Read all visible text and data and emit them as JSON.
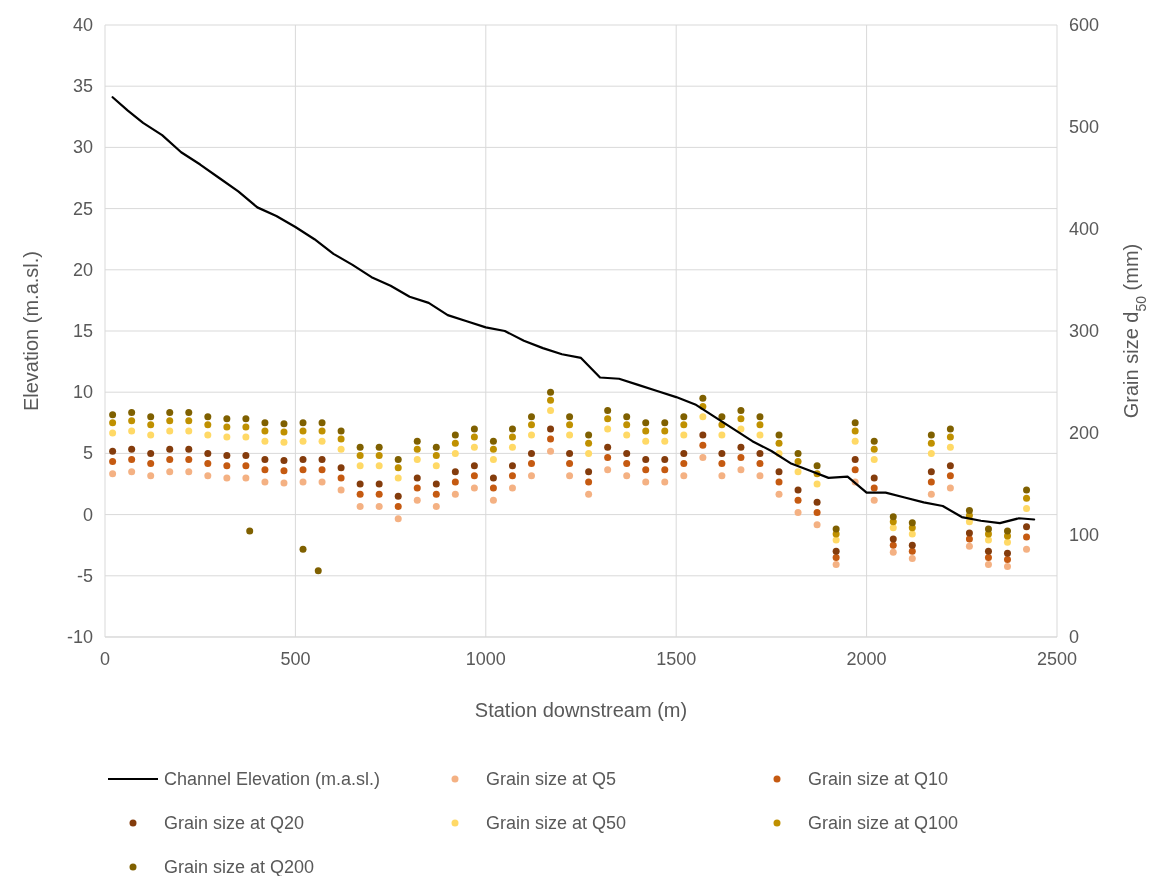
{
  "chart_data": {
    "type": "scatter",
    "xlabel": "Station downstream (m)",
    "ylabel": "Elevation (m.a.sl.)",
    "y2label": "Grain size d$_{50}$ (mm)",
    "xlim": [
      0,
      2500
    ],
    "xticks": [
      0,
      500,
      1000,
      1500,
      2000,
      2500
    ],
    "ylim": [
      -10,
      40
    ],
    "yticks": [
      -10,
      -5,
      0,
      5,
      10,
      15,
      20,
      25,
      30,
      35,
      40
    ],
    "y2lim": [
      0,
      600
    ],
    "y2ticks": [
      0,
      100,
      200,
      300,
      400,
      500,
      600
    ],
    "grid": true,
    "legend": "bottom",
    "marker": "circle",
    "x": [
      20,
      70,
      120,
      170,
      220,
      270,
      320,
      370,
      420,
      470,
      520,
      570,
      620,
      670,
      720,
      770,
      820,
      870,
      920,
      970,
      1020,
      1070,
      1120,
      1170,
      1220,
      1270,
      1320,
      1370,
      1420,
      1470,
      1520,
      1570,
      1620,
      1670,
      1720,
      1770,
      1820,
      1870,
      1920,
      1970,
      2020,
      2070,
      2120,
      2170,
      2220,
      2270,
      2320,
      2370,
      2420
    ],
    "series": [
      {
        "name": "Channel Elevation (m.a.sl.)",
        "type": "line",
        "marker": "none",
        "color": "#000000",
        "x": [
          20,
          60,
          100,
          150,
          200,
          250,
          300,
          350,
          400,
          450,
          500,
          550,
          600,
          650,
          700,
          750,
          800,
          850,
          900,
          950,
          1000,
          1050,
          1100,
          1150,
          1200,
          1250,
          1300,
          1350,
          1400,
          1450,
          1500,
          1550,
          1600,
          1650,
          1700,
          1750,
          1800,
          1850,
          1900,
          1950,
          2000,
          2050,
          2100,
          2150,
          2200,
          2250,
          2300,
          2350,
          2400,
          2440
        ],
        "values": [
          34.1,
          33,
          32,
          31,
          29.6,
          28.6,
          27.5,
          26.4,
          25.1,
          24.4,
          23.5,
          22.5,
          21.3,
          20.4,
          19.4,
          18.7,
          17.8,
          17.3,
          16.3,
          15.8,
          15.3,
          15,
          14.2,
          13.6,
          13.1,
          12.8,
          11.2,
          11.1,
          10.6,
          10.1,
          9.6,
          9,
          8,
          7,
          6,
          5.2,
          4.2,
          3.6,
          3,
          3.1,
          1.8,
          1.8,
          1.4,
          1,
          0.7,
          -0.2,
          -0.5,
          -0.7,
          -0.3,
          -0.4
        ]
      },
      {
        "name": "Grain size at Q5",
        "axis": "y2",
        "color": "#f4b183",
        "values": [
          160,
          162,
          158,
          162,
          162,
          158,
          156,
          156,
          152,
          151,
          152,
          152,
          144,
          128,
          128,
          116,
          134,
          128,
          140,
          146,
          134,
          146,
          158,
          182,
          158,
          140,
          164,
          158,
          152,
          152,
          158,
          176,
          158,
          164,
          158,
          140,
          122,
          110,
          71,
          152,
          134,
          83,
          77,
          140,
          146,
          89,
          71,
          69,
          86
        ]
      },
      {
        "name": "Grain size at Q10",
        "axis": "y2",
        "color": "#c55a11",
        "values": [
          172,
          174,
          170,
          174,
          174,
          170,
          168,
          168,
          164,
          163,
          164,
          164,
          156,
          140,
          140,
          128,
          146,
          140,
          152,
          158,
          146,
          158,
          170,
          194,
          170,
          152,
          176,
          170,
          164,
          164,
          170,
          188,
          170,
          176,
          170,
          152,
          134,
          122,
          78,
          164,
          146,
          90,
          84,
          152,
          158,
          96,
          78,
          76,
          98
        ]
      },
      {
        "name": "Grain size at Q20",
        "axis": "y2",
        "color": "#843c0c",
        "values": [
          182,
          184,
          180,
          184,
          184,
          180,
          178,
          178,
          174,
          173,
          174,
          174,
          166,
          150,
          150,
          138,
          156,
          150,
          162,
          168,
          156,
          168,
          180,
          204,
          180,
          162,
          186,
          180,
          174,
          174,
          180,
          198,
          180,
          186,
          180,
          162,
          144,
          132,
          84,
          174,
          156,
          96,
          90,
          162,
          168,
          102,
          84,
          82,
          108
        ]
      },
      {
        "name": "Grain size at Q50",
        "axis": "y2",
        "color": "#ffd966",
        "values": [
          200,
          202,
          198,
          202,
          202,
          198,
          196,
          196,
          192,
          191,
          192,
          192,
          184,
          168,
          168,
          156,
          174,
          168,
          180,
          186,
          174,
          186,
          198,
          222,
          198,
          180,
          204,
          198,
          192,
          192,
          198,
          216,
          198,
          204,
          198,
          180,
          162,
          150,
          95,
          192,
          174,
          107,
          101,
          180,
          186,
          113,
          95,
          93,
          126
        ]
      },
      {
        "name": "Grain size at Q100",
        "axis": "y2",
        "color": "#bf9000",
        "values": [
          210,
          212,
          208,
          212,
          212,
          208,
          206,
          206,
          202,
          201,
          202,
          202,
          194,
          178,
          178,
          166,
          184,
          178,
          190,
          196,
          184,
          196,
          208,
          232,
          208,
          190,
          214,
          208,
          202,
          202,
          208,
          226,
          208,
          214,
          208,
          190,
          172,
          160,
          101,
          202,
          184,
          113,
          107,
          190,
          196,
          119,
          101,
          99,
          136
        ]
      },
      {
        "name": "Grain size at Q200",
        "axis": "y2",
        "color": "#7f6000",
        "x": [
          20,
          70,
          120,
          170,
          220,
          270,
          320,
          370,
          420,
          470,
          520,
          570,
          620,
          670,
          720,
          770,
          820,
          870,
          920,
          970,
          1020,
          1070,
          1120,
          1170,
          1220,
          1270,
          1320,
          1370,
          1420,
          1470,
          1520,
          1570,
          1620,
          1670,
          1720,
          1770,
          1820,
          1870,
          1920,
          1970,
          2020,
          2070,
          2120,
          2170,
          2220,
          2270,
          2320,
          2370,
          2420,
          380,
          520,
          560
        ],
        "values": [
          218,
          220,
          216,
          220,
          220,
          216,
          214,
          214,
          210,
          209,
          210,
          210,
          202,
          186,
          186,
          174,
          192,
          186,
          198,
          204,
          192,
          204,
          216,
          240,
          216,
          198,
          222,
          216,
          210,
          210,
          216,
          234,
          216,
          222,
          216,
          198,
          180,
          168,
          106,
          210,
          192,
          118,
          112,
          198,
          204,
          124,
          106,
          104,
          144,
          104,
          86,
          65
        ]
      }
    ]
  }
}
